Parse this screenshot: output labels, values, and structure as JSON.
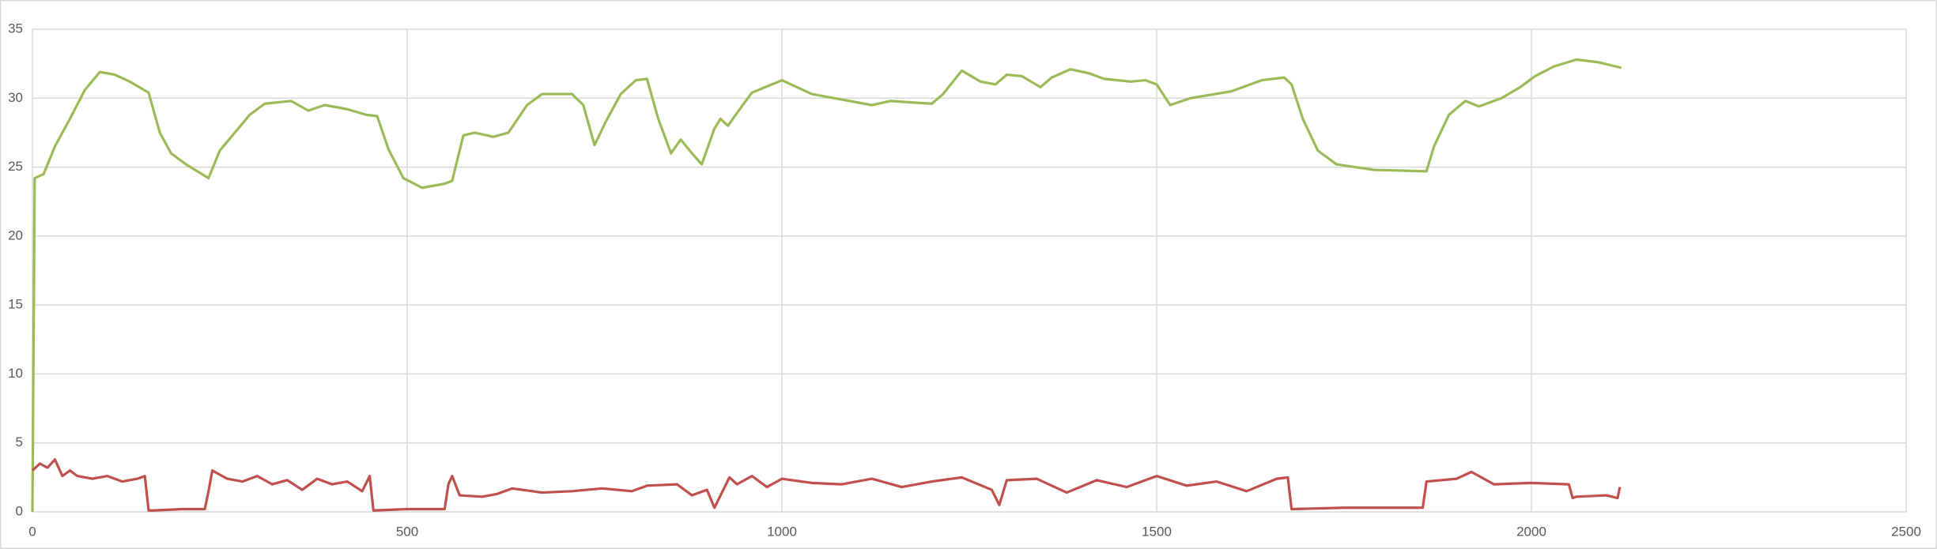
{
  "chart_data": {
    "type": "line",
    "xlim": [
      0,
      2500
    ],
    "xticks": [
      0,
      500,
      1000,
      1500,
      2000,
      2500
    ],
    "ylim": [
      0,
      35
    ],
    "yticks": [
      0,
      5,
      10,
      15,
      20,
      25,
      30,
      35
    ],
    "grid": true,
    "series": [
      {
        "color": "#9bbb59",
        "x": [
          0,
          3,
          15,
          30,
          50,
          70,
          90,
          110,
          130,
          155,
          170,
          185,
          205,
          235,
          250,
          270,
          290,
          310,
          345,
          368,
          390,
          420,
          445,
          460,
          475,
          495,
          520,
          550,
          560,
          575,
          590,
          615,
          635,
          660,
          680,
          720,
          735,
          750,
          765,
          785,
          805,
          820,
          835,
          852,
          865,
          880,
          893,
          910,
          918,
          928,
          945,
          960,
          1000,
          1040,
          1080,
          1120,
          1145,
          1170,
          1200,
          1215,
          1240,
          1265,
          1285,
          1300,
          1320,
          1345,
          1360,
          1385,
          1410,
          1430,
          1465,
          1485,
          1500,
          1518,
          1545,
          1600,
          1640,
          1670,
          1680,
          1695,
          1715,
          1740,
          1790,
          1860,
          1870,
          1890,
          1912,
          1930,
          1960,
          1985,
          2005,
          2030,
          2060,
          2090,
          2120
        ],
        "values": [
          0,
          24.2,
          24.5,
          26.5,
          28.5,
          30.6,
          31.9,
          31.7,
          31.2,
          30.4,
          27.5,
          26,
          25.2,
          24.2,
          26.2,
          27.5,
          28.8,
          29.6,
          29.8,
          29.1,
          29.5,
          29.2,
          28.8,
          28.7,
          26.3,
          24.2,
          23.5,
          23.8,
          24,
          27.3,
          27.5,
          27.2,
          27.5,
          29.5,
          30.3,
          30.3,
          29.5,
          26.6,
          28.3,
          30.3,
          31.3,
          31.4,
          28.5,
          26,
          27,
          26,
          25.2,
          27.8,
          28.5,
          28,
          29.3,
          30.4,
          31.3,
          30.3,
          29.9,
          29.5,
          29.8,
          29.7,
          29.6,
          30.3,
          32,
          31.2,
          31,
          31.7,
          31.6,
          30.8,
          31.5,
          32.1,
          31.8,
          31.4,
          31.2,
          31.3,
          31,
          29.5,
          30,
          30.5,
          31.3,
          31.5,
          31,
          28.5,
          26.2,
          25.2,
          24.8,
          24.7,
          26.5,
          28.8,
          29.8,
          29.4,
          30,
          30.8,
          31.6,
          32.3,
          32.8,
          32.6,
          32.2
        ]
      },
      {
        "color": "#c0504d",
        "x": [
          0,
          10,
          20,
          30,
          40,
          50,
          60,
          80,
          100,
          120,
          140,
          150,
          155,
          160,
          200,
          230,
          235,
          240,
          260,
          280,
          300,
          320,
          340,
          360,
          380,
          400,
          420,
          440,
          450,
          455,
          500,
          550,
          555,
          560,
          570,
          600,
          620,
          640,
          680,
          720,
          760,
          800,
          820,
          860,
          880,
          900,
          910,
          930,
          940,
          960,
          980,
          1000,
          1040,
          1080,
          1120,
          1160,
          1200,
          1240,
          1280,
          1290,
          1300,
          1340,
          1380,
          1420,
          1460,
          1500,
          1540,
          1580,
          1620,
          1660,
          1675,
          1680,
          1750,
          1850,
          1855,
          1860,
          1900,
          1920,
          1950,
          2000,
          2050,
          2055,
          2060,
          2100,
          2115,
          2118
        ],
        "values": [
          3,
          3.5,
          3.2,
          3.8,
          2.6,
          3,
          2.6,
          2.4,
          2.6,
          2.2,
          2.4,
          2.6,
          0.1,
          0.1,
          0.2,
          0.2,
          1.5,
          3,
          2.4,
          2.2,
          2.6,
          2,
          2.3,
          1.6,
          2.4,
          2,
          2.2,
          1.5,
          2.6,
          0.1,
          0.2,
          0.2,
          2,
          2.6,
          1.2,
          1.1,
          1.3,
          1.7,
          1.4,
          1.5,
          1.7,
          1.5,
          1.9,
          2,
          1.2,
          1.6,
          0.3,
          2.5,
          2,
          2.6,
          1.8,
          2.4,
          2.1,
          2,
          2.4,
          1.8,
          2.2,
          2.5,
          1.6,
          0.5,
          2.3,
          2.4,
          1.4,
          2.3,
          1.8,
          2.6,
          1.9,
          2.2,
          1.5,
          2.4,
          2.5,
          0.2,
          0.3,
          0.3,
          0.3,
          2.2,
          2.4,
          2.9,
          2,
          2.1,
          2,
          1,
          1.1,
          1.2,
          1,
          1.8
        ]
      }
    ]
  }
}
